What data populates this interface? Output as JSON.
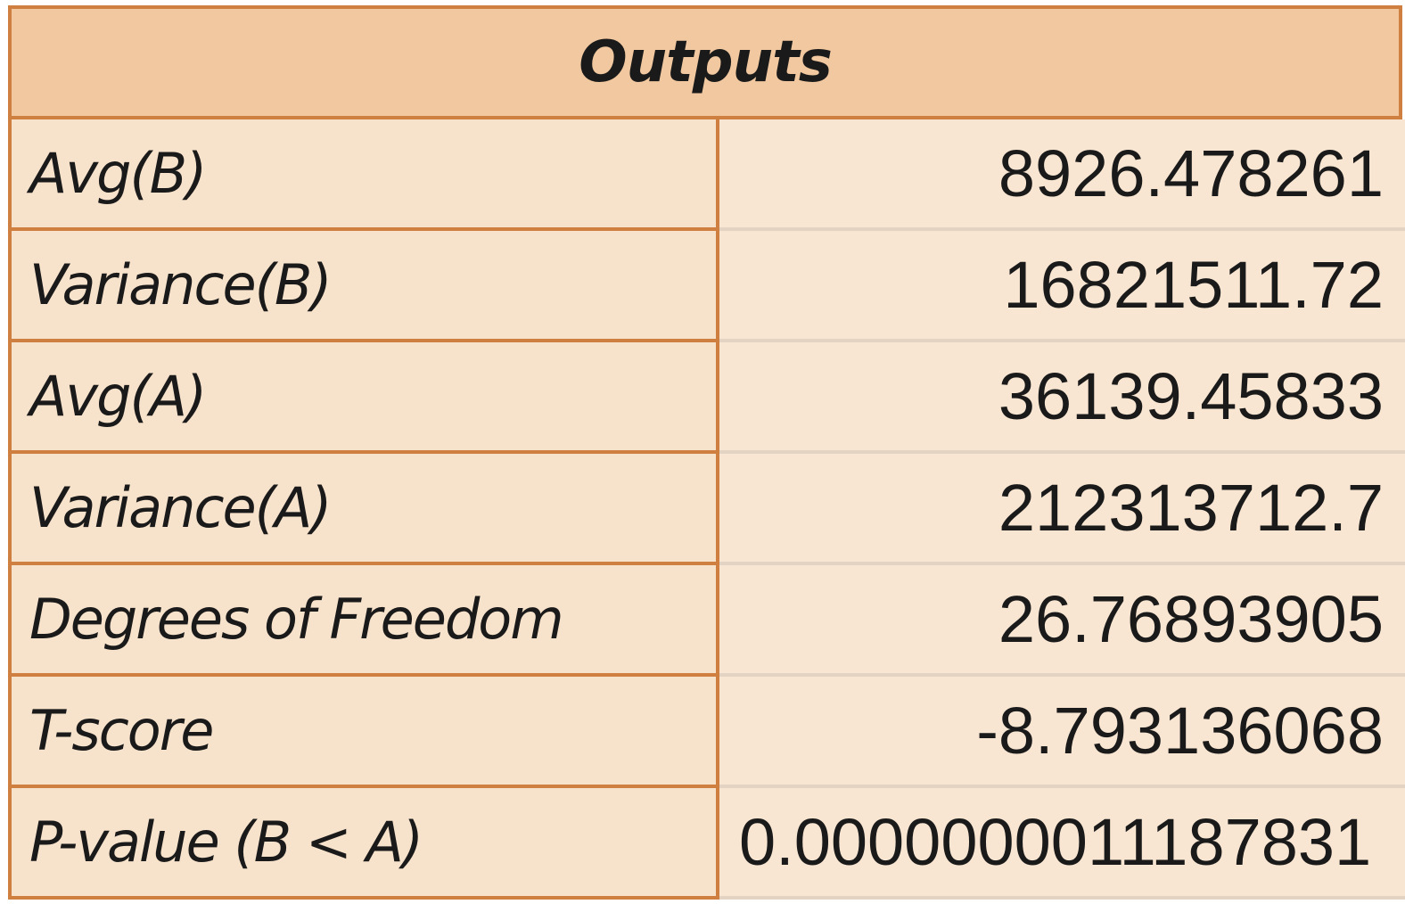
{
  "table": {
    "title": "Outputs",
    "rows": [
      {
        "label": "Avg(B)",
        "value": "8926.478261"
      },
      {
        "label": "Variance(B)",
        "value": "16821511.72"
      },
      {
        "label": "Avg(A)",
        "value": "36139.45833"
      },
      {
        "label": "Variance(A)",
        "value": "212313712.7"
      },
      {
        "label": "Degrees of Freedom",
        "value": "26.76893905"
      },
      {
        "label": "T-score",
        "value": "-8.793136068"
      },
      {
        "label": "P-value (B < A)",
        "value": "0.0000000011187831"
      }
    ]
  },
  "colors": {
    "header_bg": "#f1c89f",
    "cell_bg": "#f7e2cb",
    "border": "#cf7f3f"
  }
}
